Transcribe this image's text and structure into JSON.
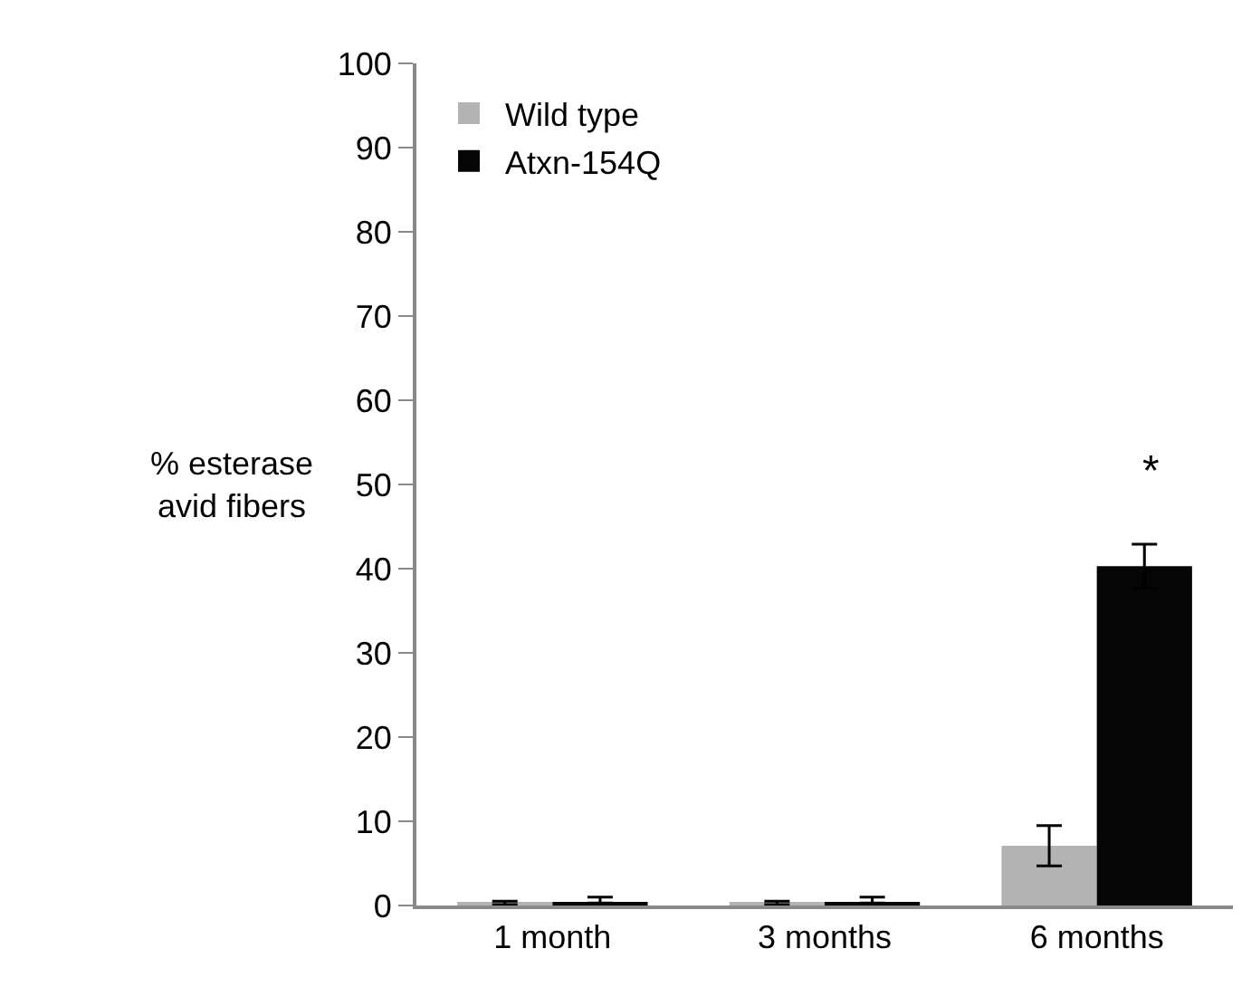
{
  "chart_data": {
    "type": "bar",
    "ylabel": "% esterase\navid fibers",
    "categories": [
      "1 month",
      "3 months",
      "6 months"
    ],
    "series": [
      {
        "name": "Wild type",
        "color": "#b3b3b3",
        "values": [
          0.3,
          0.3,
          7.1
        ],
        "errors": [
          0.2,
          0.2,
          2.4
        ]
      },
      {
        "name": "Atxn-154Q",
        "color": "#050505",
        "values": [
          0.3,
          0.3,
          40.3
        ],
        "errors": [
          [
            0.3,
            1.0
          ],
          [
            0.3,
            1.0
          ],
          2.6
        ]
      }
    ],
    "ylim": [
      0,
      100
    ],
    "yticks": [
      0,
      10,
      20,
      30,
      40,
      50,
      60,
      70,
      80,
      90,
      100
    ],
    "annotations": [
      "*"
    ],
    "legend": "top left"
  }
}
